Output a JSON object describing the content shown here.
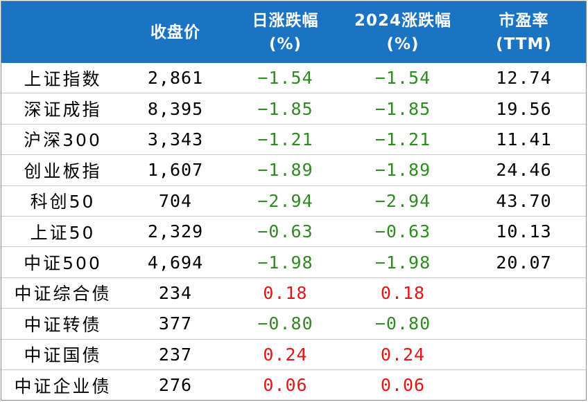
{
  "header": {
    "corner": "",
    "close": "收盘价",
    "daily_change": [
      "日涨跌幅",
      "(%)"
    ],
    "ytd_change": [
      "2024涨跌幅",
      "(%)"
    ],
    "pe": [
      "市盈率",
      "(TTM)"
    ]
  },
  "colors": {
    "header_bg": "#1b73c4",
    "negative": "#2e8b1f",
    "positive": "#e81414"
  },
  "rows": [
    {
      "name": "上证指数",
      "close": "2,861",
      "daily": "−1.54",
      "ytd": "−1.54",
      "pe": "12.74"
    },
    {
      "name": "深证成指",
      "close": "8,395",
      "daily": "−1.85",
      "ytd": "−1.85",
      "pe": "19.56"
    },
    {
      "name": "沪深300",
      "close": "3,343",
      "daily": "−1.21",
      "ytd": "−1.21",
      "pe": "11.41"
    },
    {
      "name": "创业板指",
      "close": "1,607",
      "daily": "−1.89",
      "ytd": "−1.89",
      "pe": "24.46"
    },
    {
      "name": "科创50",
      "close": "704",
      "daily": "−2.94",
      "ytd": "−2.94",
      "pe": "43.70"
    },
    {
      "name": "上证50",
      "close": "2,329",
      "daily": "−0.63",
      "ytd": "−0.63",
      "pe": "10.13"
    },
    {
      "name": "中证500",
      "close": "4,694",
      "daily": "−1.98",
      "ytd": "−1.98",
      "pe": "20.07"
    },
    {
      "name": "中证综合债",
      "close": "234",
      "daily": "0.18",
      "ytd": "0.18",
      "pe": ""
    },
    {
      "name": "中证转债",
      "close": "377",
      "daily": "−0.80",
      "ytd": "−0.80",
      "pe": ""
    },
    {
      "name": "中证国债",
      "close": "237",
      "daily": "0.24",
      "ytd": "0.24",
      "pe": ""
    },
    {
      "name": "中证企业债",
      "close": "276",
      "daily": "0.06",
      "ytd": "0.06",
      "pe": ""
    }
  ]
}
